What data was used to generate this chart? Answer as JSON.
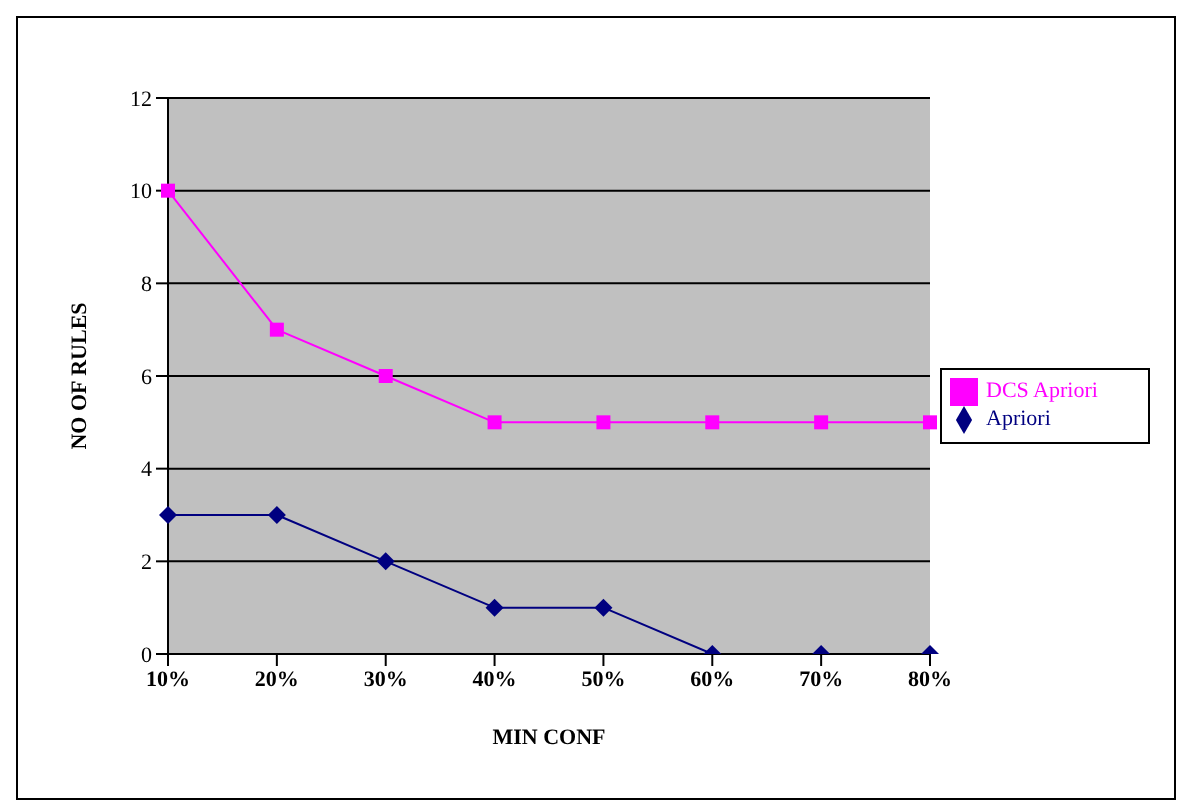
{
  "chart_data": {
    "type": "line",
    "xlabel": "MIN CONF",
    "ylabel": "NO OF RULES",
    "categories": [
      "10%",
      "20%",
      "30%",
      "40%",
      "50%",
      "60%",
      "70%",
      "80%"
    ],
    "series": [
      {
        "name": "DCS Apriori",
        "color": "#ff00ff",
        "marker": "square",
        "values": [
          10,
          7,
          6,
          5,
          5,
          5,
          5,
          5
        ]
      },
      {
        "name": "Apriori",
        "color": "#000080",
        "marker": "diamond",
        "values": [
          3,
          3,
          2,
          1,
          1,
          0,
          0,
          0
        ]
      }
    ],
    "ylim": [
      0,
      12
    ],
    "yticks": [
      0,
      2,
      4,
      6,
      8,
      10,
      12
    ],
    "grid": "y",
    "legend": "right",
    "line_style": "solid"
  }
}
